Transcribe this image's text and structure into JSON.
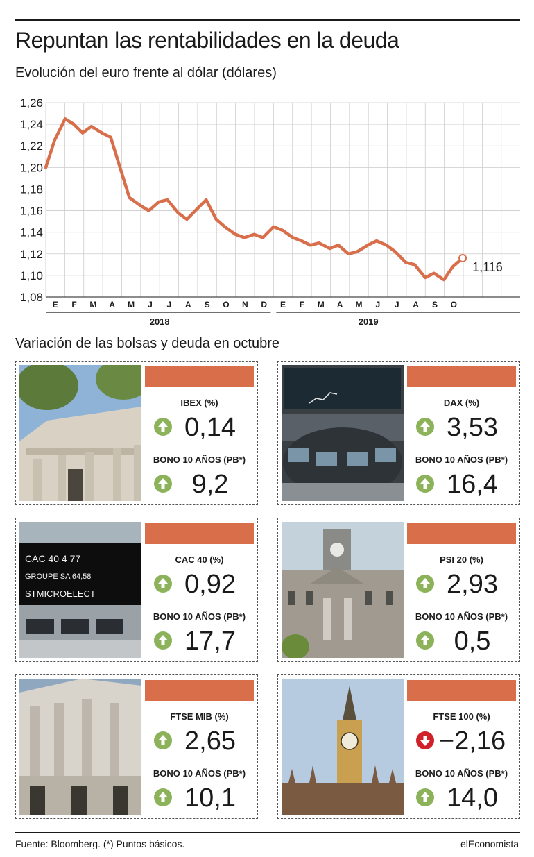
{
  "header": {
    "title": "Repuntan las rentabilidades en la deuda",
    "subtitle": "Evolución del euro frente al dólar (dólares)"
  },
  "chart_data": {
    "type": "line",
    "title": "Evolución del euro frente al dólar (dólares)",
    "ylim": [
      1.08,
      1.26
    ],
    "yticks": [
      "1,26",
      "1,24",
      "1,22",
      "1,20",
      "1,18",
      "1,16",
      "1,14",
      "1,12",
      "1,10",
      "1,08"
    ],
    "month_labels": [
      "E",
      "F",
      "M",
      "A",
      "M",
      "J",
      "J",
      "A",
      "S",
      "O",
      "N",
      "D",
      "E",
      "F",
      "M",
      "A",
      "M",
      "J",
      "J",
      "A",
      "S",
      "O"
    ],
    "years": [
      "2018",
      "2019"
    ],
    "last_value_label": "1,116",
    "grid": true,
    "line_color": "#d86e4a",
    "series": [
      {
        "x": [
          "2018-01-01",
          "2018-01-15",
          "2018-02-01",
          "2018-02-15",
          "2018-03-01",
          "2018-03-15",
          "2018-04-01",
          "2018-04-15",
          "2018-05-01",
          "2018-05-15",
          "2018-06-01",
          "2018-06-15",
          "2018-07-01",
          "2018-07-15",
          "2018-08-01",
          "2018-08-15",
          "2018-09-01",
          "2018-09-15",
          "2018-10-01",
          "2018-10-15",
          "2018-11-01",
          "2018-11-15",
          "2018-12-01",
          "2018-12-15",
          "2019-01-01",
          "2019-01-15",
          "2019-02-01",
          "2019-02-15",
          "2019-03-01",
          "2019-03-15",
          "2019-04-01",
          "2019-04-15",
          "2019-05-01",
          "2019-05-15",
          "2019-06-01",
          "2019-06-15",
          "2019-07-01",
          "2019-07-15",
          "2019-08-01",
          "2019-08-15",
          "2019-09-01",
          "2019-09-15",
          "2019-10-01",
          "2019-10-15",
          "2019-10-31"
        ],
        "values": [
          1.2,
          1.225,
          1.245,
          1.24,
          1.232,
          1.238,
          1.232,
          1.228,
          1.198,
          1.172,
          1.165,
          1.16,
          1.168,
          1.17,
          1.158,
          1.152,
          1.162,
          1.17,
          1.152,
          1.145,
          1.138,
          1.135,
          1.138,
          1.135,
          1.145,
          1.142,
          1.135,
          1.132,
          1.128,
          1.13,
          1.125,
          1.128,
          1.12,
          1.122,
          1.128,
          1.132,
          1.128,
          1.122,
          1.112,
          1.11,
          1.098,
          1.102,
          1.096,
          1.108,
          1.116
        ]
      }
    ]
  },
  "section": {
    "title": "Variación de las bolsas y deuda en octubre"
  },
  "panels": [
    {
      "index_label": "IBEX (%)",
      "index_value": "0,14",
      "index_dir": "up",
      "bond_label": "BONO 10 AÑOS (PB*)",
      "bond_value": "9,2",
      "bond_dir": "up",
      "photo": "bolsa-madrid"
    },
    {
      "index_label": "DAX (%)",
      "index_value": "3,53",
      "index_dir": "up",
      "bond_label": "BONO 10 AÑOS (PB*)",
      "bond_value": "16,4",
      "bond_dir": "up",
      "photo": "frankfurt-trading-floor"
    },
    {
      "index_label": "CAC 40 (%)",
      "index_value": "0,92",
      "index_dir": "up",
      "bond_label": "BONO 10 AÑOS (PB*)",
      "bond_value": "17,7",
      "bond_dir": "up",
      "photo": "paris-trading-floor"
    },
    {
      "index_label": "PSI 20 (%)",
      "index_value": "2,93",
      "index_dir": "up",
      "bond_label": "BONO 10 AÑOS (PB*)",
      "bond_value": "0,5",
      "bond_dir": "up",
      "photo": "lisbon-building"
    },
    {
      "index_label": "FTSE MIB (%)",
      "index_value": "2,65",
      "index_dir": "up",
      "bond_label": "BONO 10 AÑOS (PB*)",
      "bond_value": "10,1",
      "bond_dir": "up",
      "photo": "milan-bourse"
    },
    {
      "index_label": "FTSE 100 (%)",
      "index_value": "−2,16",
      "index_dir": "down",
      "bond_label": "BONO 10 AÑOS (PB*)",
      "bond_value": "14,0",
      "bond_dir": "up",
      "photo": "big-ben"
    }
  ],
  "photo_text": {
    "cac_rows": [
      "CAC 40  4 77",
      "GROUPE SA  64,58",
      "STMICROELECT"
    ]
  },
  "colors": {
    "accent": "#d86e4a",
    "up": "#8cb25a",
    "down": "#d0202a",
    "grid": "#cccccc"
  },
  "footer": {
    "source": "Fuente: Bloomberg. (*) Puntos básicos.",
    "brand": "elEconomista"
  }
}
